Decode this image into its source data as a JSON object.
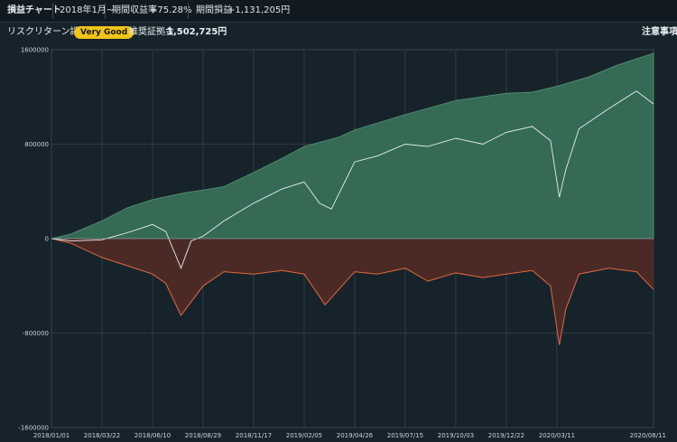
{
  "header": {
    "title": "損益チャート",
    "period": "2018年1月~",
    "return_label": "期間収益率",
    "return_value": "+75.28%",
    "pnl_label": "期間損益",
    "pnl_value": "+1,131,205円"
  },
  "subheader": {
    "risk_label": "リスクリターン評価",
    "risk_badge": "Very Good",
    "capital_label": "推奨証拠金",
    "capital_value": "1,502,725円",
    "notice_link": "注意事項"
  },
  "colors": {
    "green_area": "#356a55",
    "red_area": "#4b2a25",
    "line_white": "#e8eef2",
    "line_orange": "#e0683e",
    "badge": "#f0c419"
  },
  "chart_data": {
    "type": "area",
    "ylim": [
      -1600000,
      1600000
    ],
    "y_ticks": [
      "1600000",
      "800000",
      "0",
      "-800000",
      "-1600000"
    ],
    "x_ticks": [
      "2018/01/01",
      "2018/03/22",
      "2018/06/10",
      "2018/08/29",
      "2018/11/17",
      "2019/02/05",
      "2019/04/26",
      "2019/07/15",
      "2019/10/03",
      "2019/12/22",
      "2020/03/11",
      "2020/08/11"
    ],
    "grid": true,
    "series": [
      {
        "style": "green-area",
        "x": [
          "2018/01/01",
          "2018/02/01",
          "2018/03/22",
          "2018/05/01",
          "2018/06/10",
          "2018/08/01",
          "2018/08/29",
          "2018/10/01",
          "2018/11/17",
          "2019/01/01",
          "2019/02/05",
          "2019/04/01",
          "2019/04/26",
          "2019/07/15",
          "2019/10/03",
          "2019/12/22",
          "2020/02/01",
          "2020/03/11",
          "2020/05/01",
          "2020/06/15",
          "2020/08/11"
        ],
        "values": [
          0,
          40000,
          150000,
          260000,
          330000,
          390000,
          410000,
          440000,
          560000,
          680000,
          780000,
          860000,
          920000,
          1050000,
          1170000,
          1230000,
          1240000,
          1290000,
          1370000,
          1470000,
          1570000
        ]
      },
      {
        "style": "white-line",
        "x": [
          "2018/01/01",
          "2018/02/01",
          "2018/03/22",
          "2018/05/01",
          "2018/06/10",
          "2018/07/01",
          "2018/07/25",
          "2018/08/10",
          "2018/08/29",
          "2018/10/01",
          "2018/11/17",
          "2019/01/01",
          "2019/02/05",
          "2019/03/01",
          "2019/03/20",
          "2019/04/26",
          "2019/06/01",
          "2019/07/15",
          "2019/08/20",
          "2019/10/03",
          "2019/11/15",
          "2019/12/22",
          "2020/02/01",
          "2020/03/01",
          "2020/03/15",
          "2020/03/25",
          "2020/04/15",
          "2020/06/01",
          "2020/07/15",
          "2020/08/11"
        ],
        "values": [
          0,
          -20000,
          -10000,
          50000,
          120000,
          60000,
          -250000,
          -20000,
          20000,
          150000,
          300000,
          420000,
          480000,
          300000,
          250000,
          650000,
          700000,
          800000,
          780000,
          850000,
          800000,
          900000,
          950000,
          830000,
          350000,
          580000,
          930000,
          1100000,
          1250000,
          1140000
        ]
      },
      {
        "style": "orange-line",
        "x": [
          "2018/01/01",
          "2018/02/01",
          "2018/03/22",
          "2018/05/01",
          "2018/06/10",
          "2018/07/01",
          "2018/07/25",
          "2018/08/29",
          "2018/10/01",
          "2018/11/17",
          "2019/01/01",
          "2019/02/05",
          "2019/03/10",
          "2019/04/26",
          "2019/06/01",
          "2019/07/15",
          "2019/08/20",
          "2019/10/03",
          "2019/11/15",
          "2019/12/22",
          "2020/02/01",
          "2020/03/01",
          "2020/03/15",
          "2020/03/25",
          "2020/04/15",
          "2020/06/01",
          "2020/07/15",
          "2020/08/11"
        ],
        "values": [
          0,
          -40000,
          -160000,
          -230000,
          -300000,
          -380000,
          -650000,
          -400000,
          -280000,
          -300000,
          -270000,
          -300000,
          -560000,
          -280000,
          -300000,
          -250000,
          -360000,
          -290000,
          -330000,
          -300000,
          -270000,
          -400000,
          -900000,
          -600000,
          -300000,
          -250000,
          -280000,
          -430000
        ]
      },
      {
        "style": "red-area",
        "x": [
          "2018/01/01",
          "2018/02/01",
          "2018/03/22",
          "2018/05/01",
          "2018/06/10",
          "2018/07/01",
          "2018/07/25",
          "2018/08/29",
          "2018/10/01",
          "2018/11/17",
          "2019/01/01",
          "2019/02/05",
          "2019/03/10",
          "2019/04/26",
          "2019/06/01",
          "2019/07/15",
          "2019/08/20",
          "2019/10/03",
          "2019/11/15",
          "2019/12/22",
          "2020/02/01",
          "2020/03/01",
          "2020/03/15",
          "2020/03/25",
          "2020/04/15",
          "2020/06/01",
          "2020/07/15",
          "2020/08/11"
        ],
        "values": [
          0,
          -40000,
          -160000,
          -230000,
          -300000,
          -380000,
          -650000,
          -400000,
          -280000,
          -300000,
          -270000,
          -300000,
          -560000,
          -280000,
          -300000,
          -250000,
          -360000,
          -290000,
          -330000,
          -300000,
          -270000,
          -400000,
          -900000,
          -600000,
          -300000,
          -250000,
          -280000,
          -430000
        ]
      }
    ]
  }
}
